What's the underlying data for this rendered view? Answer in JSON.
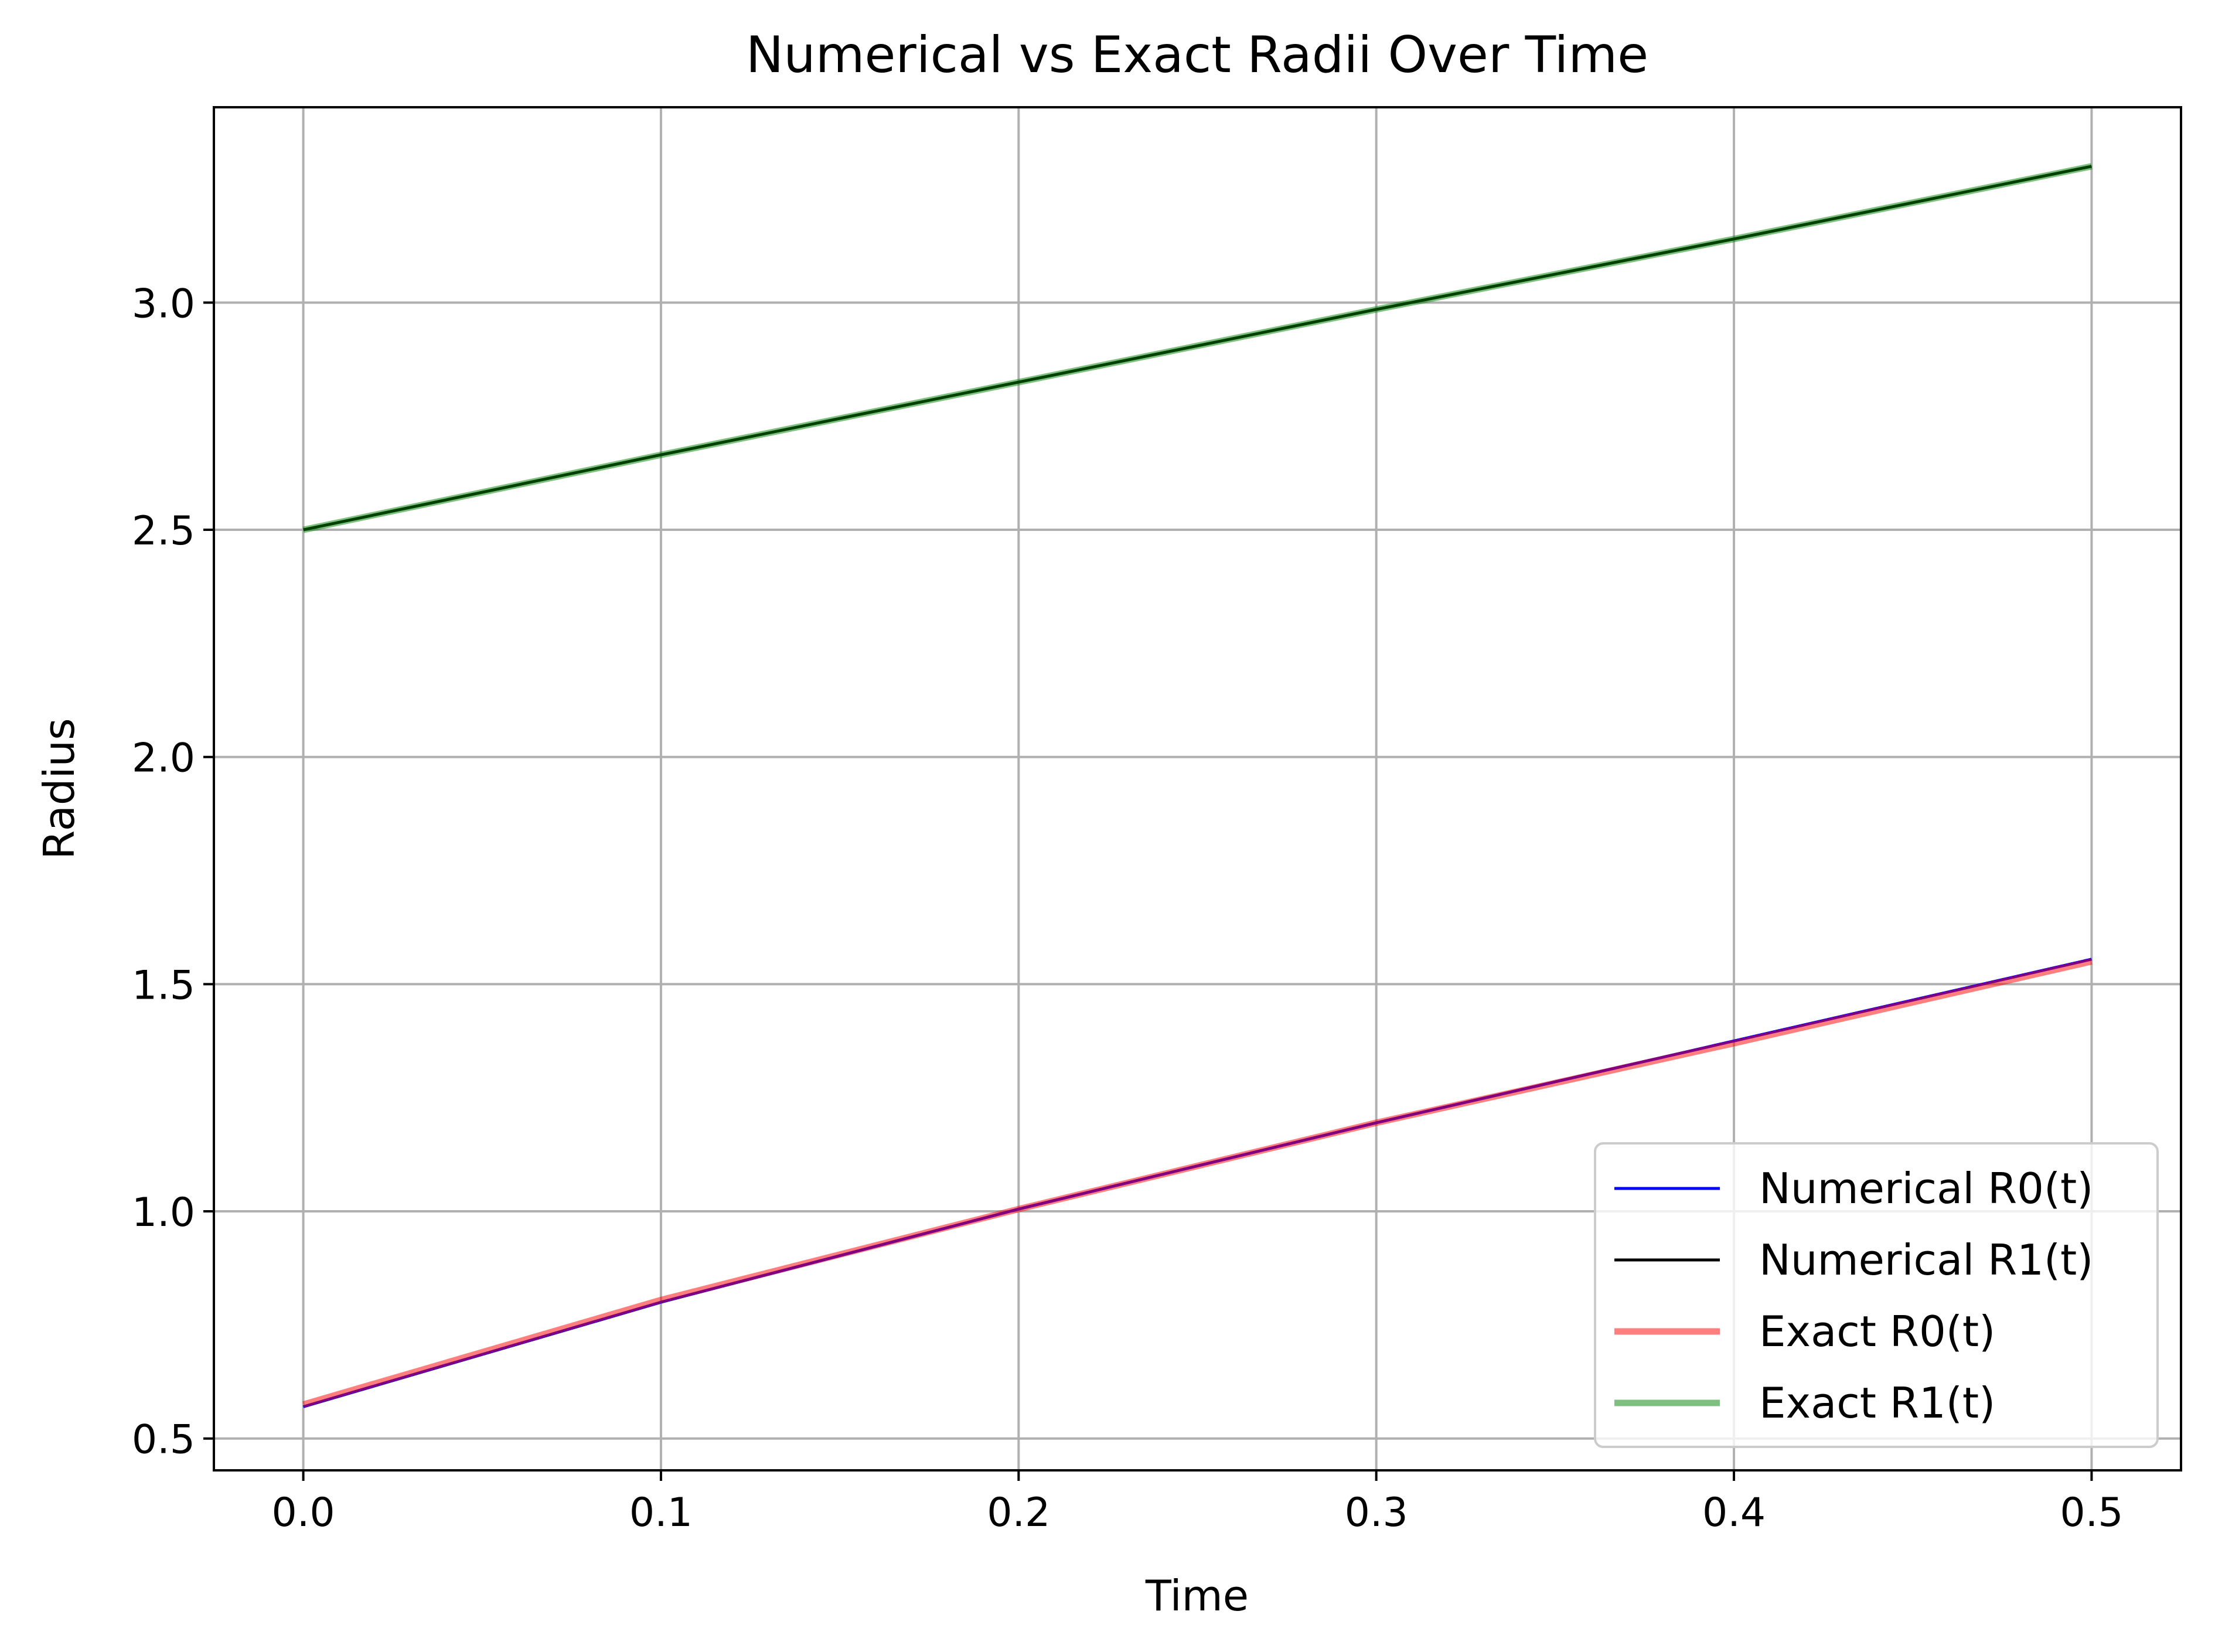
{
  "chart_data": {
    "type": "line",
    "title": "Numerical vs Exact Radii Over Time",
    "xlabel": "Time",
    "ylabel": "Radius",
    "xlim": [
      -0.025,
      0.525
    ],
    "ylim": [
      0.43,
      3.43
    ],
    "xticks": [
      {
        "value": 0.0,
        "label": "0.0"
      },
      {
        "value": 0.1,
        "label": "0.1"
      },
      {
        "value": 0.2,
        "label": "0.2"
      },
      {
        "value": 0.3,
        "label": "0.3"
      },
      {
        "value": 0.4,
        "label": "0.4"
      },
      {
        "value": 0.5,
        "label": "0.5"
      }
    ],
    "yticks": [
      {
        "value": 0.5,
        "label": "0.5"
      },
      {
        "value": 1.0,
        "label": "1.0"
      },
      {
        "value": 1.5,
        "label": "1.5"
      },
      {
        "value": 2.0,
        "label": "2.0"
      },
      {
        "value": 2.5,
        "label": "2.5"
      },
      {
        "value": 3.0,
        "label": "3.0"
      }
    ],
    "grid": true,
    "legend_position": "lower right",
    "series": [
      {
        "name": "Numerical R0(t)",
        "color": "#0000ff",
        "style": "thin",
        "x": [
          0.0,
          0.1,
          0.2,
          0.3,
          0.4,
          0.5
        ],
        "y": [
          0.57,
          0.8,
          1.005,
          1.195,
          1.375,
          1.555
        ]
      },
      {
        "name": "Numerical R1(t)",
        "color": "#000000",
        "style": "thin",
        "x": [
          0.0,
          0.1,
          0.2,
          0.3,
          0.4,
          0.5
        ],
        "y": [
          2.5,
          2.665,
          2.825,
          2.985,
          3.14,
          3.3
        ]
      },
      {
        "name": "Exact R0(t)",
        "color": "#ff0000",
        "style": "thick-translucent",
        "x": [
          0.0,
          0.1,
          0.2,
          0.3,
          0.4,
          0.5
        ],
        "y": [
          0.575,
          0.805,
          1.005,
          1.195,
          1.37,
          1.55
        ]
      },
      {
        "name": "Exact R1(t)",
        "color": "#008000",
        "style": "thick-translucent",
        "x": [
          0.0,
          0.1,
          0.2,
          0.3,
          0.4,
          0.5
        ],
        "y": [
          2.5,
          2.665,
          2.825,
          2.985,
          3.14,
          3.3
        ]
      }
    ]
  }
}
